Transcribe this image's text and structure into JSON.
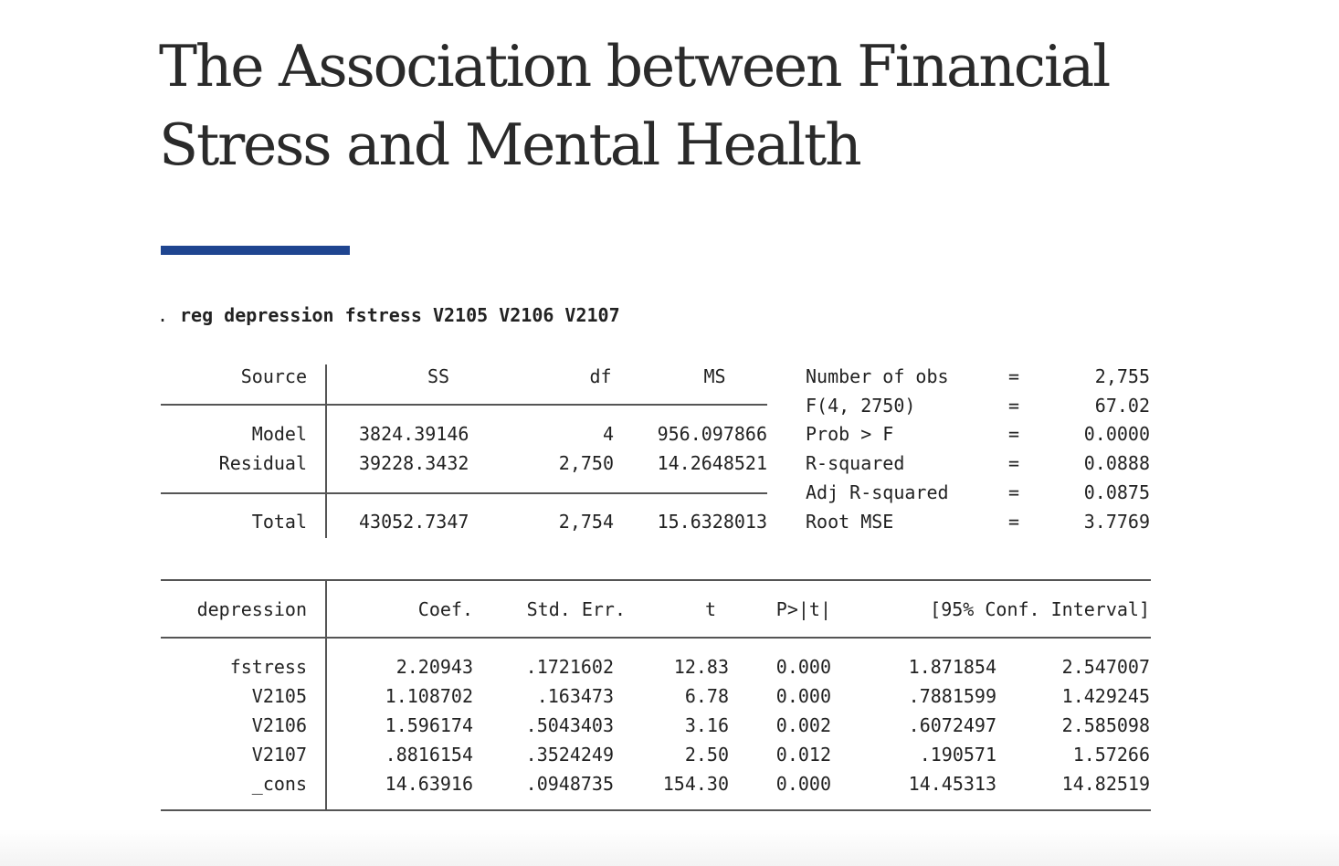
{
  "title": "The Association between Financial Stress and Mental Health",
  "accent_color": "#1f4590",
  "command": {
    "prompt": ".",
    "text": "reg depression fstress V2105 V2106 V2107"
  },
  "anova": {
    "headers": [
      "Source",
      "SS",
      "df",
      "MS"
    ],
    "rows": [
      {
        "source": "Model",
        "ss": "3824.39146",
        "df": "4",
        "ms": "956.097866"
      },
      {
        "source": "Residual",
        "ss": "39228.3432",
        "df": "2,750",
        "ms": "14.2648521"
      },
      {
        "source": "Total",
        "ss": "43052.7347",
        "df": "2,754",
        "ms": "15.6328013"
      }
    ]
  },
  "stats": [
    {
      "label": "Number of obs",
      "eq": "=",
      "value": "2,755"
    },
    {
      "label": "F(4, 2750)",
      "eq": "=",
      "value": "67.02"
    },
    {
      "label": "Prob > F",
      "eq": "=",
      "value": "0.0000"
    },
    {
      "label": "R-squared",
      "eq": "=",
      "value": "0.0888"
    },
    {
      "label": "Adj R-squared",
      "eq": "=",
      "value": "0.0875"
    },
    {
      "label": "Root MSE",
      "eq": "=",
      "value": "3.7769"
    }
  ],
  "coef_table": {
    "headers": {
      "depvar": "depression",
      "coef": "Coef.",
      "se": "Std. Err.",
      "t": "t",
      "p": "P>|t|",
      "ci": "[95% Conf. Interval]"
    },
    "rows": [
      {
        "var": "fstress",
        "coef": "2.20943",
        "se": ".1721602",
        "t": "12.83",
        "p": "0.000",
        "lo": "1.871854",
        "hi": "2.547007"
      },
      {
        "var": "V2105",
        "coef": "1.108702",
        "se": ".163473",
        "t": "6.78",
        "p": "0.000",
        "lo": ".7881599",
        "hi": "1.429245"
      },
      {
        "var": "V2106",
        "coef": "1.596174",
        "se": ".5043403",
        "t": "3.16",
        "p": "0.002",
        "lo": ".6072497",
        "hi": "2.585098"
      },
      {
        "var": "V2107",
        "coef": ".8816154",
        "se": ".3524249",
        "t": "2.50",
        "p": "0.012",
        "lo": ".190571",
        "hi": "1.57266"
      },
      {
        "var": "_cons",
        "coef": "14.63916",
        "se": ".0948735",
        "t": "154.30",
        "p": "0.000",
        "lo": "14.45313",
        "hi": "14.82519"
      }
    ]
  }
}
